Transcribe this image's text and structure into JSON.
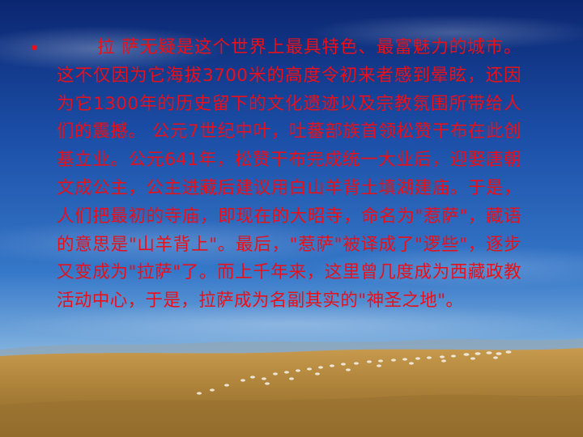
{
  "slide": {
    "bullet": "•",
    "paragraph": "拉 萨无疑是这个世界上最具特色、最富魅力的城市。这不仅因为它海拔3700米的高度令初来者感到晕眩，还因为它1300年的历史留下的文化遗迹以及宗教氛围所带给人们的震撼。 公元7世纪中叶，吐蕃部族首领松赞干布在此创基立业。公元641年，松赞干布完成统一大业后，迎娶唐朝文成公主，公主进藏后建议用白山羊背土填湖建庙。于是，人们把最初的寺庙，即现在的大昭寺，命名为\"惹萨\"，藏语的意思是\"山羊背上\"。最后，\"惹萨\"被译成了\"逻些\"，逐步又变成为\"拉萨\"了。而上千年来，这里曾几度成为西藏政教活动中心，于是，拉萨成为名副其实的\"神圣之地\"。",
    "colors": {
      "text": "#e8101a",
      "sky_top": "#0a2a78",
      "sky_mid": "#2f6fc4",
      "sky_horizon": "#a9c8e6",
      "grass": "#b58a3e",
      "grass_dark": "#7a5a24"
    }
  }
}
